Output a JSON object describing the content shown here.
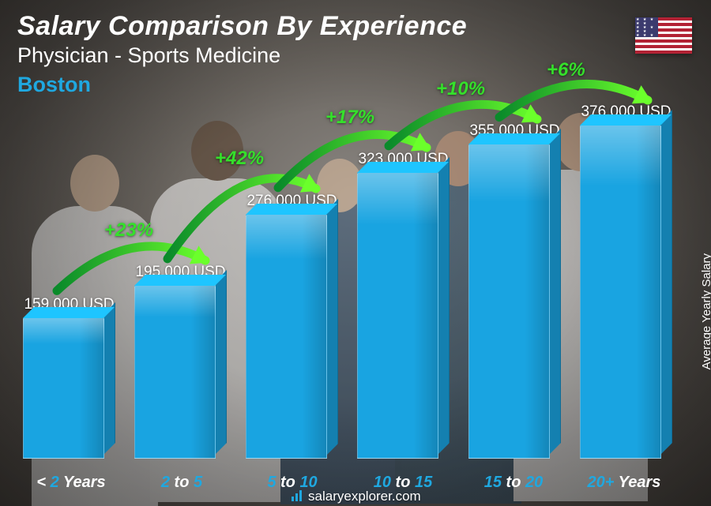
{
  "header": {
    "title": "Salary Comparison By Experience",
    "title_fontsize": 34,
    "subtitle": "Physician - Sports Medicine",
    "subtitle_fontsize": 27,
    "city": "Boston",
    "city_fontsize": 27,
    "city_color": "#1fa8e0",
    "text_color": "#ffffff"
  },
  "flag": {
    "name": "us-flag-icon",
    "stripe_red": "#b22234",
    "stripe_white": "#ffffff",
    "canton_blue": "#3c3b6e"
  },
  "yaxis": {
    "label": "Average Yearly Salary",
    "fontsize": 15,
    "color": "#ffffff"
  },
  "chart": {
    "type": "bar",
    "ylim_max": 420000,
    "bar_color": "#19a4e1",
    "bar_top_color": "#4fc2f0",
    "bar_side_color": "#0f7bb0",
    "value_fontsize": 19,
    "value_color": "#ffffff",
    "accent_color": "#1fa8e0",
    "bars": [
      {
        "value": 159000,
        "value_label": "159,000 USD",
        "x_pre": "< ",
        "x_num": "2",
        "x_post": " Years"
      },
      {
        "value": 195000,
        "value_label": "195,000 USD",
        "x_pre": "",
        "x_num": "2",
        "x_mid": " to ",
        "x_num2": "5",
        "x_post": ""
      },
      {
        "value": 276000,
        "value_label": "276,000 USD",
        "x_pre": "",
        "x_num": "5",
        "x_mid": " to ",
        "x_num2": "10",
        "x_post": ""
      },
      {
        "value": 323000,
        "value_label": "323,000 USD",
        "x_pre": "",
        "x_num": "10",
        "x_mid": " to ",
        "x_num2": "15",
        "x_post": ""
      },
      {
        "value": 355000,
        "value_label": "355,000 USD",
        "x_pre": "",
        "x_num": "15",
        "x_mid": " to ",
        "x_num2": "20",
        "x_post": ""
      },
      {
        "value": 376000,
        "value_label": "376,000 USD",
        "x_pre": "",
        "x_num": "20+",
        "x_post": " Years"
      }
    ],
    "xaxis_fontsize": 20,
    "xaxis_num_color": "#1fa8e0",
    "xaxis_word_color": "#ffffff"
  },
  "arcs": {
    "color_start": "#0a8a2a",
    "color_end": "#6bff2b",
    "label_color": "#35e02b",
    "label_fontsize": 24,
    "items": [
      {
        "label": "+23%"
      },
      {
        "label": "+42%"
      },
      {
        "label": "+17%"
      },
      {
        "label": "+10%"
      },
      {
        "label": "+6%"
      }
    ]
  },
  "footer": {
    "text": "salaryexplorer.com",
    "fontsize": 17,
    "logo_color": "#1fa8e0"
  },
  "background": {
    "center_color": "#8a8682",
    "edge_color": "#3a3632"
  }
}
